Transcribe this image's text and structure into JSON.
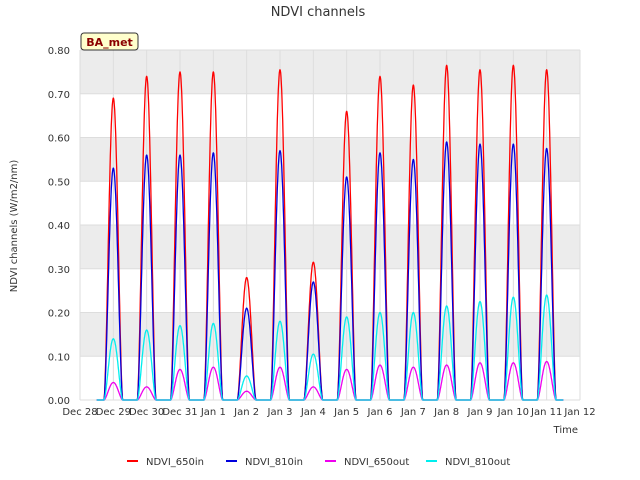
{
  "chart_data": {
    "type": "line",
    "title": "NDVI channels",
    "xlabel": "Time",
    "ylabel": "NDVI channels (W/m2/nm)",
    "ylim": [
      0,
      0.8
    ],
    "yticks": [
      "0.00",
      "0.10",
      "0.20",
      "0.30",
      "0.40",
      "0.50",
      "0.60",
      "0.70",
      "0.80"
    ],
    "xticks": [
      "Dec 28",
      "Dec 29",
      "Dec 30",
      "Dec 31",
      "Jan 1",
      "Jan 2",
      "Jan 3",
      "Jan 4",
      "Jan 5",
      "Jan 6",
      "Jan 7",
      "Jan 8",
      "Jan 9",
      "Jan 10",
      "Jan 11",
      "Jan 12"
    ],
    "grid": true,
    "legend_position": "bottom",
    "badge": "BA_met",
    "day_centers": [
      "Dec 29",
      "Dec 30",
      "Dec 31",
      "Jan 1",
      "Jan 2",
      "Jan 3",
      "Jan 4",
      "Jan 5",
      "Jan 6",
      "Jan 7",
      "Jan 8",
      "Jan 9",
      "Jan 10",
      "Jan 11"
    ],
    "series": [
      {
        "name": "NDVI_650in",
        "color": "#ff0000",
        "daily_peaks": [
          0.69,
          0.74,
          0.75,
          0.75,
          0.28,
          0.755,
          0.315,
          0.66,
          0.74,
          0.72,
          0.765,
          0.755,
          0.765,
          0.755
        ]
      },
      {
        "name": "NDVI_810in",
        "color": "#0000dd",
        "daily_peaks": [
          0.53,
          0.56,
          0.56,
          0.565,
          0.21,
          0.57,
          0.27,
          0.51,
          0.565,
          0.55,
          0.59,
          0.585,
          0.585,
          0.575
        ]
      },
      {
        "name": "NDVI_650out",
        "color": "#ee00ee",
        "daily_peaks": [
          0.04,
          0.03,
          0.07,
          0.075,
          0.02,
          0.075,
          0.03,
          0.07,
          0.08,
          0.075,
          0.08,
          0.085,
          0.085,
          0.088
        ]
      },
      {
        "name": "NDVI_810out",
        "color": "#00eeee",
        "daily_peaks": [
          0.14,
          0.16,
          0.17,
          0.175,
          0.055,
          0.18,
          0.105,
          0.19,
          0.2,
          0.2,
          0.215,
          0.225,
          0.235,
          0.24
        ]
      }
    ]
  }
}
